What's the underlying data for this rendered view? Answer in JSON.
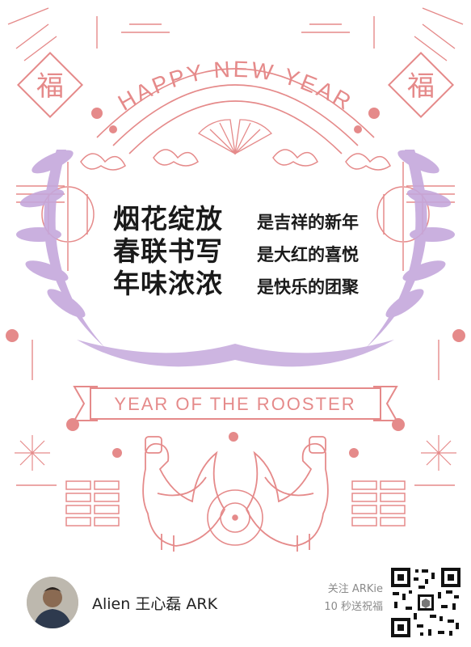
{
  "card": {
    "fu_char": "福",
    "headline": "HAPPY NEW YEAR",
    "banner": "YEAR OF THE ROOSTER",
    "poem": [
      {
        "main": "烟花绽放",
        "sub": "是吉祥的新年"
      },
      {
        "main": "春联书写",
        "sub": "是大红的喜悦"
      },
      {
        "main": "年味浓浓",
        "sub": "是快乐的团聚"
      }
    ]
  },
  "footer": {
    "author": "Alien 王心磊 ARK",
    "follow_line1": "关注 ARKie",
    "follow_line2": "10 秒送祝福"
  },
  "colors": {
    "line_pink": "#e58a8a",
    "lavender": "#c4a8dc",
    "text_dark": "#1a1a1a"
  }
}
